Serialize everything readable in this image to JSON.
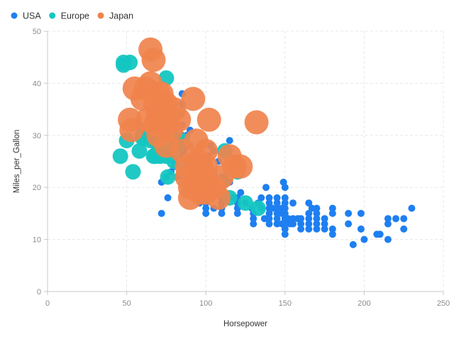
{
  "chart_data": {
    "type": "scatter",
    "xlabel": "Horsepower",
    "ylabel": "Miles_per_Gallon",
    "xlim": [
      0,
      250
    ],
    "ylim": [
      0,
      50
    ],
    "xticks": [
      0,
      50,
      100,
      150,
      200,
      250
    ],
    "yticks": [
      0,
      10,
      20,
      30,
      40,
      50
    ],
    "grid": true,
    "legend_position": "top-left",
    "series": [
      {
        "name": "USA",
        "color": "#1e7ff0",
        "marker_size": "small",
        "points": [
          [
            72,
            15
          ],
          [
            72,
            21
          ],
          [
            75,
            22
          ],
          [
            76,
            18
          ],
          [
            78,
            23
          ],
          [
            80,
            25
          ],
          [
            80,
            24
          ],
          [
            82,
            22
          ],
          [
            84,
            28
          ],
          [
            85,
            26
          ],
          [
            85,
            30
          ],
          [
            85,
            32
          ],
          [
            85,
            36
          ],
          [
            85,
            38
          ],
          [
            86,
            27
          ],
          [
            88,
            28
          ],
          [
            88,
            25
          ],
          [
            88,
            21
          ],
          [
            89,
            25
          ],
          [
            90,
            24
          ],
          [
            90,
            20
          ],
          [
            90,
            19
          ],
          [
            90,
            26
          ],
          [
            90,
            28
          ],
          [
            91,
            22
          ],
          [
            92,
            24
          ],
          [
            95,
            20
          ],
          [
            95,
            18
          ],
          [
            96,
            17
          ],
          [
            97,
            18
          ],
          [
            98,
            19
          ],
          [
            98,
            23
          ],
          [
            100,
            15
          ],
          [
            100,
            16
          ],
          [
            100,
            18
          ],
          [
            100,
            22
          ],
          [
            102,
            26
          ],
          [
            103,
            28
          ],
          [
            105,
            16
          ],
          [
            105,
            20
          ],
          [
            105,
            23
          ],
          [
            107,
            19
          ],
          [
            108,
            25
          ],
          [
            110,
            15
          ],
          [
            110,
            16
          ],
          [
            110,
            17
          ],
          [
            110,
            18
          ],
          [
            110,
            19
          ],
          [
            110,
            20
          ],
          [
            110,
            22
          ],
          [
            112,
            22
          ],
          [
            115,
            21
          ],
          [
            115,
            24
          ],
          [
            115,
            29
          ],
          [
            117,
            18
          ],
          [
            120,
            15
          ],
          [
            120,
            16
          ],
          [
            120,
            17
          ],
          [
            120,
            18
          ],
          [
            122,
            19
          ],
          [
            125,
            17
          ],
          [
            129,
            16
          ],
          [
            130,
            13
          ],
          [
            130,
            14
          ],
          [
            130,
            15
          ],
          [
            133,
            17
          ],
          [
            135,
            16
          ],
          [
            135,
            18
          ],
          [
            137,
            14
          ],
          [
            138,
            20
          ],
          [
            140,
            13
          ],
          [
            140,
            14
          ],
          [
            140,
            15
          ],
          [
            140,
            16
          ],
          [
            140,
            17
          ],
          [
            140,
            18
          ],
          [
            142,
            16
          ],
          [
            145,
            13
          ],
          [
            145,
            14
          ],
          [
            145,
            15
          ],
          [
            145,
            16
          ],
          [
            145,
            17
          ],
          [
            148,
            15
          ],
          [
            148,
            16
          ],
          [
            150,
            11
          ],
          [
            150,
            13
          ],
          [
            150,
            14
          ],
          [
            150,
            15
          ],
          [
            150,
            16
          ],
          [
            150,
            17
          ],
          [
            150,
            18
          ],
          [
            152,
            14
          ],
          [
            153,
            13
          ],
          [
            155,
            13
          ],
          [
            155,
            17
          ],
          [
            158,
            14
          ],
          [
            160,
            12
          ],
          [
            160,
            13
          ],
          [
            160,
            14
          ],
          [
            165,
            12
          ],
          [
            165,
            13
          ],
          [
            165,
            14
          ],
          [
            165,
            15
          ],
          [
            165,
            17
          ],
          [
            167,
            16
          ],
          [
            170,
            12
          ],
          [
            170,
            13
          ],
          [
            170,
            14
          ],
          [
            170,
            15
          ],
          [
            170,
            16
          ],
          [
            175,
            12
          ],
          [
            175,
            13
          ],
          [
            175,
            14
          ],
          [
            180,
            11
          ],
          [
            180,
            12
          ],
          [
            180,
            15
          ],
          [
            180,
            16
          ],
          [
            190,
            13
          ],
          [
            190,
            15
          ],
          [
            193,
            9
          ],
          [
            198,
            12
          ],
          [
            198,
            15
          ],
          [
            200,
            10
          ],
          [
            208,
            11
          ],
          [
            210,
            11
          ],
          [
            215,
            10
          ],
          [
            215,
            13
          ],
          [
            215,
            14
          ],
          [
            220,
            14
          ],
          [
            225,
            12
          ],
          [
            225,
            14
          ],
          [
            230,
            16
          ],
          [
            100,
            17
          ],
          [
            95,
            23
          ],
          [
            88,
            30
          ],
          [
            97,
            20
          ],
          [
            93,
            26
          ],
          [
            105,
            27
          ],
          [
            90,
            31
          ],
          [
            84,
            34
          ],
          [
            113,
            21
          ],
          [
            86,
            22
          ],
          [
            139,
            14
          ],
          [
            150,
            12
          ],
          [
            155,
            14
          ],
          [
            150,
            20
          ],
          [
            145,
            18
          ],
          [
            148,
            13
          ],
          [
            149,
            21
          ]
        ]
      },
      {
        "name": "Europe",
        "color": "#14c6c1",
        "marker_size": "medium",
        "points": [
          [
            46,
            26
          ],
          [
            48,
            43.5
          ],
          [
            48,
            44
          ],
          [
            50,
            29
          ],
          [
            52,
            44
          ],
          [
            54,
            23
          ],
          [
            58,
            27
          ],
          [
            60,
            29.5
          ],
          [
            62,
            31
          ],
          [
            63,
            30
          ],
          [
            65,
            29
          ],
          [
            67,
            26
          ],
          [
            68,
            29
          ],
          [
            70,
            28
          ],
          [
            70,
            33
          ],
          [
            71,
            26
          ],
          [
            74,
            27
          ],
          [
            75,
            26
          ],
          [
            75,
            41
          ],
          [
            76,
            22
          ],
          [
            77,
            30
          ],
          [
            78,
            33
          ],
          [
            78,
            30
          ],
          [
            80,
            25
          ],
          [
            82,
            28
          ],
          [
            85,
            29
          ],
          [
            88,
            23
          ],
          [
            90,
            25
          ],
          [
            95,
            20
          ],
          [
            100,
            21
          ],
          [
            102,
            20
          ],
          [
            103,
            22
          ],
          [
            110,
            21
          ],
          [
            112,
            27
          ],
          [
            115,
            18
          ],
          [
            120,
            23
          ],
          [
            125,
            17
          ],
          [
            133,
            16
          ],
          [
            60,
            30
          ],
          [
            68,
            26
          ]
        ]
      },
      {
        "name": "Japan",
        "color": "#f0834c",
        "marker_size": "large",
        "points": [
          [
            52,
            33
          ],
          [
            53,
            31
          ],
          [
            55,
            39
          ],
          [
            60,
            37
          ],
          [
            62,
            39
          ],
          [
            63,
            33
          ],
          [
            65,
            46.5
          ],
          [
            65,
            40
          ],
          [
            67,
            44.5
          ],
          [
            68,
            32
          ],
          [
            68,
            36
          ],
          [
            70,
            34
          ],
          [
            70,
            38
          ],
          [
            70,
            30
          ],
          [
            72,
            35
          ],
          [
            75,
            32
          ],
          [
            75,
            28
          ],
          [
            75,
            36
          ],
          [
            80,
            35
          ],
          [
            83,
            33
          ],
          [
            85,
            27
          ],
          [
            88,
            24
          ],
          [
            88,
            22
          ],
          [
            90,
            20
          ],
          [
            92,
            37
          ],
          [
            94,
            29
          ],
          [
            95,
            25
          ],
          [
            95,
            21
          ],
          [
            97,
            24
          ],
          [
            100,
            27
          ],
          [
            100,
            24
          ],
          [
            100,
            21
          ],
          [
            100,
            19
          ],
          [
            102,
            33
          ],
          [
            105,
            20
          ],
          [
            110,
            22
          ],
          [
            115,
            26
          ],
          [
            118,
            24
          ],
          [
            122,
            24
          ],
          [
            132,
            32.5
          ],
          [
            90,
            18
          ],
          [
            96,
            19
          ],
          [
            108,
            18
          ],
          [
            72,
            38
          ],
          [
            78,
            31
          ]
        ]
      }
    ]
  }
}
